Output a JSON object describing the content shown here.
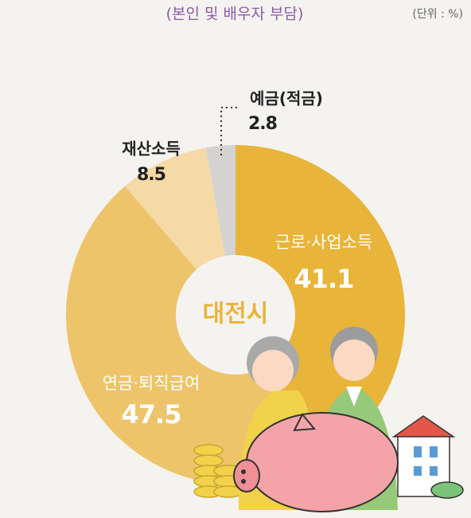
{
  "chart_data": {
    "type": "donut",
    "title": "(본인 및 배우자 부담)",
    "unit_label": "(단위 : %)",
    "center_label": "대전시",
    "categories": [
      "근로·사업소득",
      "연금·퇴직급여",
      "재산소득",
      "예금(적금)"
    ],
    "values": [
      41.1,
      47.5,
      8.5,
      2.8
    ],
    "colors": [
      "#e9b43a",
      "#eec46b",
      "#f5d9a6",
      "#d4d3d2"
    ]
  }
}
